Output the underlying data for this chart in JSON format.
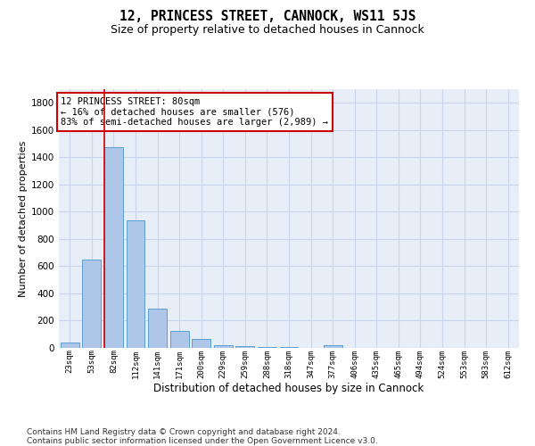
{
  "title": "12, PRINCESS STREET, CANNOCK, WS11 5JS",
  "subtitle": "Size of property relative to detached houses in Cannock",
  "xlabel": "Distribution of detached houses by size in Cannock",
  "ylabel": "Number of detached properties",
  "categories": [
    "23sqm",
    "53sqm",
    "82sqm",
    "112sqm",
    "141sqm",
    "171sqm",
    "200sqm",
    "229sqm",
    "259sqm",
    "288sqm",
    "318sqm",
    "347sqm",
    "377sqm",
    "406sqm",
    "435sqm",
    "465sqm",
    "494sqm",
    "524sqm",
    "553sqm",
    "583sqm",
    "612sqm"
  ],
  "values": [
    40,
    648,
    1476,
    938,
    286,
    127,
    68,
    22,
    14,
    8,
    5,
    3,
    22,
    0,
    0,
    0,
    0,
    0,
    0,
    0,
    0
  ],
  "bar_color": "#aec6e8",
  "bar_edge_color": "#5a9fd4",
  "highlight_line_index": 2,
  "highlight_line_color": "#cc0000",
  "annotation_line1": "12 PRINCESS STREET: 80sqm",
  "annotation_line2": "← 16% of detached houses are smaller (576)",
  "annotation_line3": "83% of semi-detached houses are larger (2,989) →",
  "annotation_box_facecolor": "#ffffff",
  "annotation_box_edgecolor": "#cc0000",
  "ylim": [
    0,
    1900
  ],
  "yticks": [
    0,
    200,
    400,
    600,
    800,
    1000,
    1200,
    1400,
    1600,
    1800
  ],
  "grid_color": "#c8d4e8",
  "plot_bg_color": "#e8eef8",
  "footer_line1": "Contains HM Land Registry data © Crown copyright and database right 2024.",
  "footer_line2": "Contains public sector information licensed under the Open Government Licence v3.0.",
  "title_fontsize": 10.5,
  "subtitle_fontsize": 9,
  "ylabel_fontsize": 8,
  "xlabel_fontsize": 8.5,
  "tick_fontsize": 7.5,
  "xtick_fontsize": 6.5,
  "annotation_fontsize": 7.5,
  "footer_fontsize": 6.5
}
